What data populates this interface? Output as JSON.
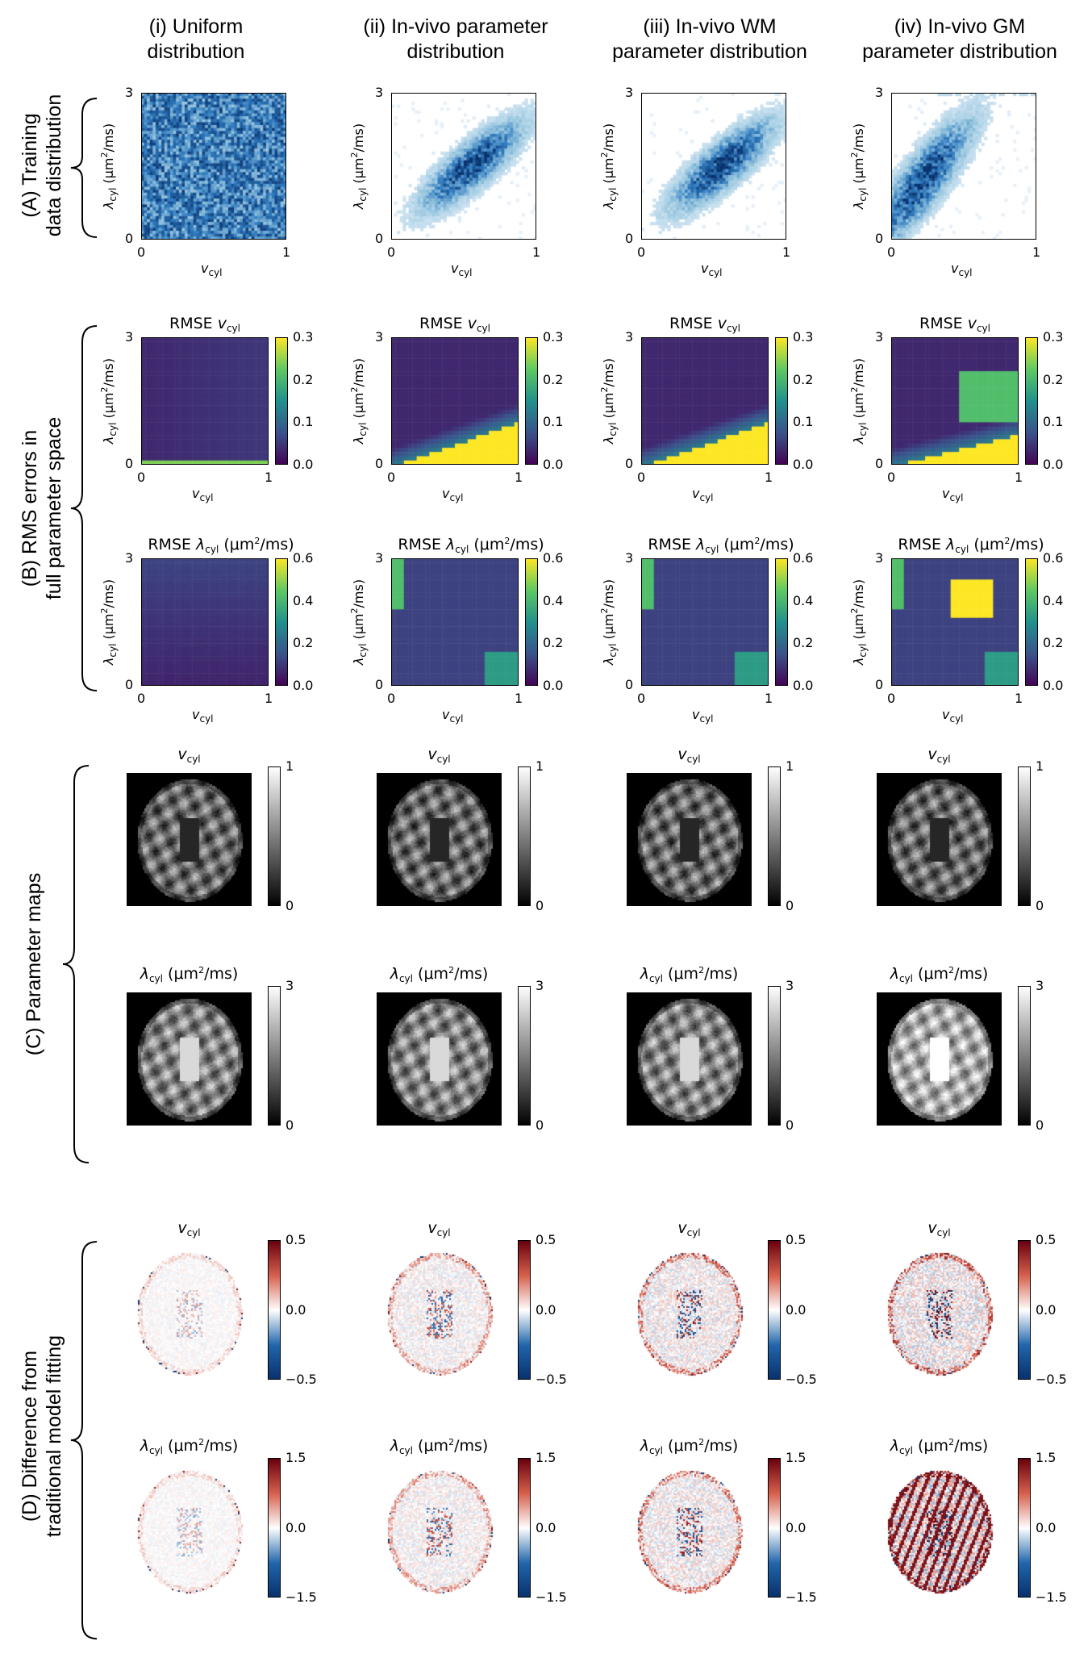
{
  "columns": [
    {
      "line1": "(i) Uniform",
      "line2": "distribution"
    },
    {
      "line1": "(ii) In-vivo parameter",
      "line2": "distribution"
    },
    {
      "line1": "(iii) In-vivo WM",
      "line2": "parameter distribution"
    },
    {
      "line1": "(iv) In-vivo GM",
      "line2": "parameter distribution"
    }
  ],
  "rows": {
    "A": {
      "line1": "(A) Training",
      "line2": "data distribution"
    },
    "B": {
      "line1": "(B) RMS errors in",
      "line2": "full parameter space"
    },
    "C": {
      "line1": "(C) Parameter maps"
    },
    "D": {
      "line1": "(D) Difference from",
      "line2": "traditional model fitting"
    }
  },
  "axes": {
    "x_symbol": "v",
    "x_sub": "cyl",
    "y_symbol": "λ",
    "y_sub": "cyl",
    "y_unit": "(μm²/ms)",
    "x_ticks": [
      "0",
      "1"
    ],
    "y_ticks": [
      "0",
      "3"
    ]
  },
  "panel_titles": {
    "rmse_v": "RMSE v",
    "rmse_lambda": "RMSE λ",
    "unit": "(μm²/ms)",
    "map_v": "v",
    "map_lambda": "λ",
    "sub": "cyl"
  },
  "colorbars": {
    "rmse_v": [
      "0.3",
      "0.2",
      "0.1",
      "0.0"
    ],
    "rmse_lambda": [
      "0.6",
      "0.4",
      "0.2",
      "0.0"
    ],
    "map_v": [
      "1",
      "0"
    ],
    "map_lambda": [
      "3",
      "0"
    ],
    "diff_v": [
      "0.5",
      "0.0",
      "−0.5"
    ],
    "diff_lambda": [
      "1.5",
      "0.0",
      "−1.5"
    ]
  },
  "colors": {
    "viridis": [
      "#440154",
      "#3b528b",
      "#21908d",
      "#5dc963",
      "#fde725"
    ],
    "blues": "#2f7bbf",
    "diverging": [
      "#08306b",
      "#2166ac",
      "#ffffff",
      "#d6604d",
      "#67000d"
    ]
  }
}
